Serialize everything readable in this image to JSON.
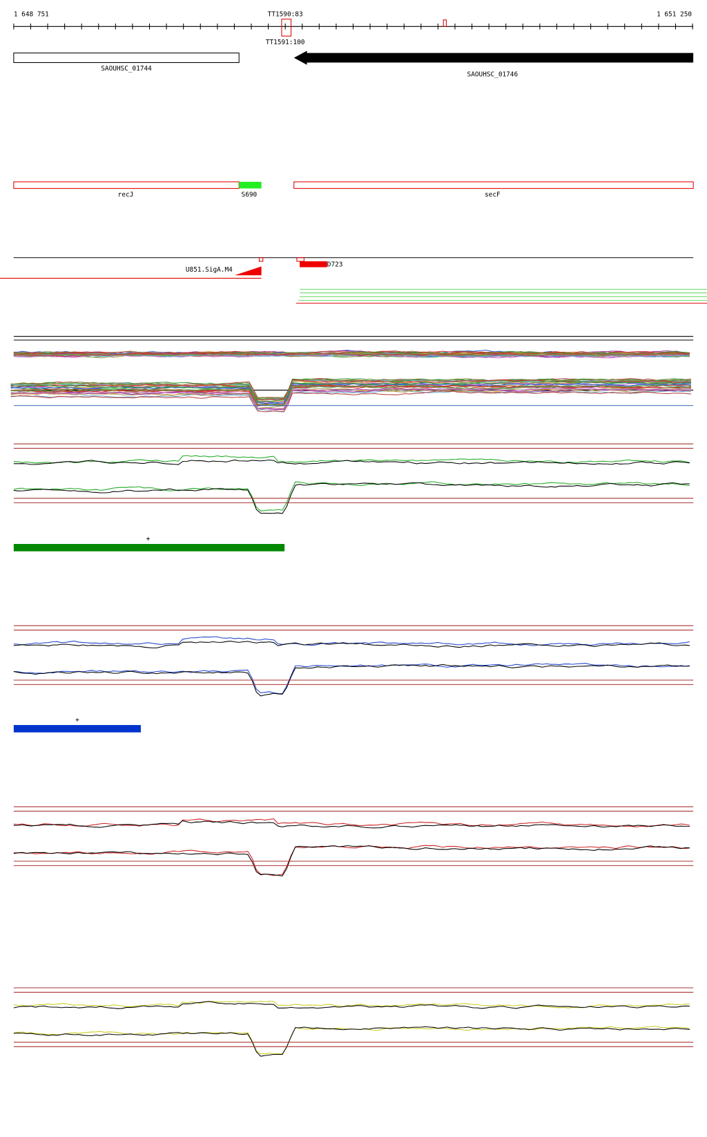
{
  "ruler": {
    "start": "1 648 751",
    "end": "1 651 250",
    "terminators": [
      "TT1590:83",
      "TT1591:100"
    ]
  },
  "annotations": {
    "genes": [
      "SAOUHSC_01744",
      "SAOUHSC_01746"
    ]
  },
  "features": {
    "genes": [
      "recJ",
      "S690",
      "secF"
    ]
  },
  "transcripts": {
    "labels": [
      "U851.SigA.M4",
      "D723"
    ]
  },
  "segments": {
    "green_marker": "+",
    "blue_marker": "+"
  }
}
